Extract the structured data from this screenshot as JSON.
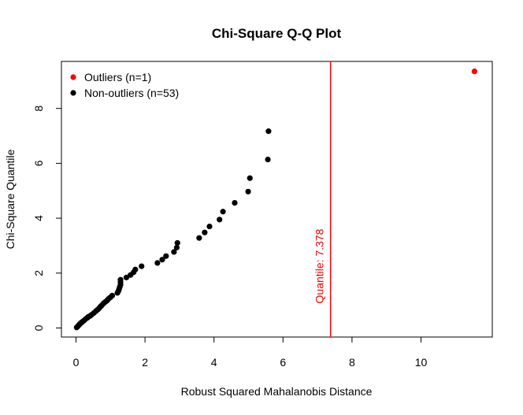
{
  "chart_data": {
    "type": "scatter",
    "title": "Chi-Square Q-Q Plot",
    "xlabel": "Robust Squared Mahalanobis Distance",
    "ylabel": "Chi-Square Quantile",
    "xlim": [
      -0.4,
      12.0
    ],
    "ylim": [
      -0.3,
      9.8
    ],
    "xticks": [
      0,
      2,
      4,
      6,
      8,
      10
    ],
    "yticks": [
      0,
      2,
      4,
      6,
      8
    ],
    "grid": false,
    "legend_position": "top-left",
    "series": [
      {
        "name": "Outliers (n=1)",
        "color": "#ff0000",
        "points": [
          [
            11.55,
            9.35
          ]
        ]
      },
      {
        "name": "Non-outliers (n=53)",
        "color": "#000000",
        "points": [
          [
            0.02,
            0.02
          ],
          [
            0.05,
            0.06
          ],
          [
            0.08,
            0.1
          ],
          [
            0.1,
            0.13
          ],
          [
            0.13,
            0.17
          ],
          [
            0.16,
            0.2
          ],
          [
            0.2,
            0.24
          ],
          [
            0.24,
            0.28
          ],
          [
            0.28,
            0.33
          ],
          [
            0.33,
            0.37
          ],
          [
            0.4,
            0.43
          ],
          [
            0.45,
            0.48
          ],
          [
            0.52,
            0.55
          ],
          [
            0.58,
            0.62
          ],
          [
            0.63,
            0.67
          ],
          [
            0.67,
            0.72
          ],
          [
            0.71,
            0.78
          ],
          [
            0.75,
            0.83
          ],
          [
            0.8,
            0.9
          ],
          [
            0.85,
            0.95
          ],
          [
            0.9,
            1.0
          ],
          [
            0.94,
            1.06
          ],
          [
            1.0,
            1.12
          ],
          [
            1.05,
            1.18
          ],
          [
            1.2,
            1.28
          ],
          [
            1.23,
            1.35
          ],
          [
            1.25,
            1.42
          ],
          [
            1.27,
            1.5
          ],
          [
            1.29,
            1.58
          ],
          [
            1.29,
            1.67
          ],
          [
            1.29,
            1.76
          ],
          [
            1.46,
            1.84
          ],
          [
            1.58,
            1.93
          ],
          [
            1.67,
            2.03
          ],
          [
            1.72,
            2.13
          ],
          [
            1.9,
            2.25
          ],
          [
            2.36,
            2.37
          ],
          [
            2.5,
            2.49
          ],
          [
            2.61,
            2.62
          ],
          [
            2.84,
            2.77
          ],
          [
            2.92,
            2.93
          ],
          [
            2.94,
            3.1
          ],
          [
            3.57,
            3.28
          ],
          [
            3.73,
            3.48
          ],
          [
            3.87,
            3.7
          ],
          [
            4.16,
            3.95
          ],
          [
            4.26,
            4.24
          ],
          [
            4.6,
            4.56
          ],
          [
            4.99,
            4.97
          ],
          [
            5.04,
            5.46
          ],
          [
            5.56,
            6.14
          ],
          [
            5.58,
            7.17
          ],
          [
            0.36,
            0.41
          ]
        ]
      }
    ],
    "cutoff": {
      "x": 7.378,
      "label": "Quantile:  7.378",
      "color": "#ff0000"
    }
  }
}
